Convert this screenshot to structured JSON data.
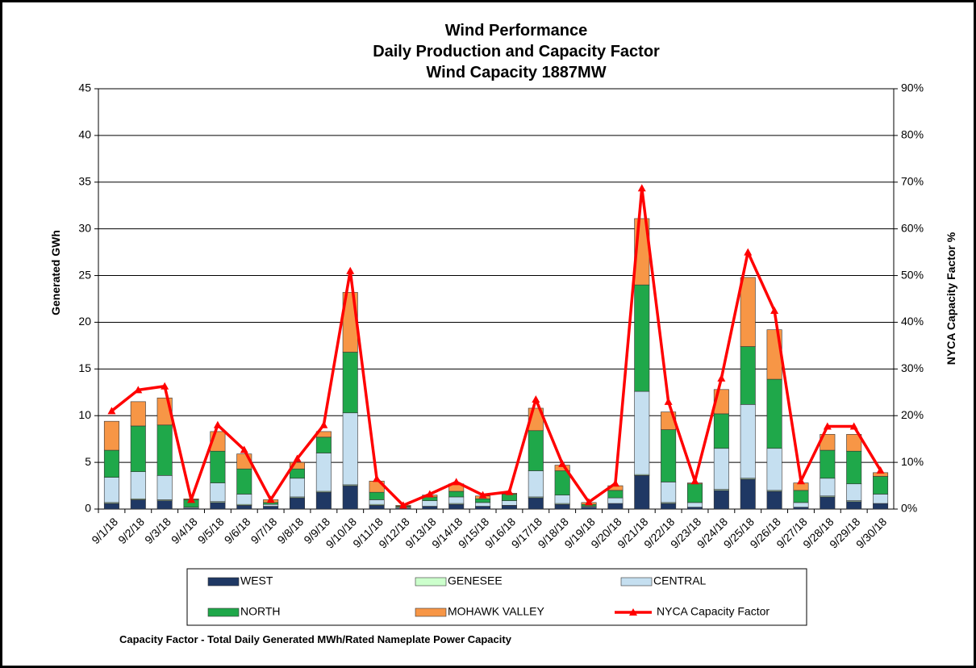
{
  "chart_data": {
    "type": "stacked-bar-line",
    "title": [
      "Wind Performance",
      "Daily Production and Capacity Factor",
      "Wind Capacity 1887MW"
    ],
    "ylabel": "Generated GWh",
    "y2label": "NYCA  Capacity  Factor %",
    "footnote": "Capacity Factor  - Total Daily Generated MWh/Rated Nameplate Power Capacity",
    "categories": [
      "9/1/18",
      "9/2/18",
      "9/3/18",
      "9/4/18",
      "9/5/18",
      "9/6/18",
      "9/7/18",
      "9/8/18",
      "9/9/18",
      "9/10/18",
      "9/11/18",
      "9/12/18",
      "9/13/18",
      "9/14/18",
      "9/15/18",
      "9/16/18",
      "9/17/18",
      "9/18/18",
      "9/19/18",
      "9/20/18",
      "9/21/18",
      "9/22/18",
      "9/23/18",
      "9/24/18",
      "9/25/18",
      "9/26/18",
      "9/27/18",
      "9/28/18",
      "9/29/18",
      "9/30/18"
    ],
    "ylim": [
      0,
      45
    ],
    "yticks": [
      0,
      5,
      10,
      15,
      20,
      25,
      30,
      35,
      40,
      45
    ],
    "y2lim": [
      0,
      90
    ],
    "y2ticks": [
      {
        "value": 0,
        "label": "0%"
      },
      {
        "value": 10,
        "label": "10%"
      },
      {
        "value": 20,
        "label": "20%"
      },
      {
        "value": 30,
        "label": "30%"
      },
      {
        "value": 40,
        "label": "40%"
      },
      {
        "value": 50,
        "label": "50%"
      },
      {
        "value": 60,
        "label": "60%"
      },
      {
        "value": 70,
        "label": "70%"
      },
      {
        "value": 80,
        "label": "80%"
      },
      {
        "value": 90,
        "label": "90%"
      }
    ],
    "grid": true,
    "legend": "bottom",
    "series": [
      {
        "name": "WEST",
        "color": "#1f3864",
        "values": [
          0.6,
          1.0,
          0.9,
          0.1,
          0.7,
          0.4,
          0.3,
          1.2,
          1.8,
          2.5,
          0.4,
          0.1,
          0.3,
          0.5,
          0.3,
          0.4,
          1.2,
          0.5,
          0.2,
          0.6,
          3.6,
          0.6,
          0.2,
          2.0,
          3.2,
          1.9,
          0.2,
          1.3,
          0.8,
          0.6
        ]
      },
      {
        "name": "GENESEE",
        "color": "#ccffcc",
        "values": [
          0.1,
          0.1,
          0.1,
          0,
          0.1,
          0.1,
          0,
          0.1,
          0.1,
          0.1,
          0.1,
          0,
          0,
          0.1,
          0,
          0,
          0.1,
          0.1,
          0,
          0,
          0.1,
          0.1,
          0,
          0.1,
          0.1,
          0.1,
          0,
          0.1,
          0.1,
          0
        ]
      },
      {
        "name": "CENTRAL",
        "color": "#c5dff0",
        "values": [
          2.7,
          2.9,
          2.6,
          0.1,
          2.0,
          1.1,
          0.2,
          2.0,
          4.1,
          7.7,
          0.5,
          0.1,
          0.6,
          0.7,
          0.4,
          0.5,
          2.8,
          0.9,
          0.1,
          0.6,
          8.9,
          2.2,
          0.5,
          4.4,
          7.9,
          4.5,
          0.5,
          1.9,
          1.8,
          1.0
        ]
      },
      {
        "name": "NORTH",
        "color": "#1fa84a",
        "values": [
          2.9,
          4.9,
          5.4,
          0.8,
          3.4,
          2.7,
          0.2,
          1.0,
          1.7,
          6.5,
          0.8,
          0.1,
          0.4,
          0.6,
          0.4,
          0.7,
          4.3,
          2.6,
          0.2,
          0.8,
          11.4,
          5.6,
          2.0,
          3.7,
          6.2,
          7.4,
          1.3,
          3.0,
          3.5,
          1.9
        ]
      },
      {
        "name": "MOHAWK VALLEY",
        "color": "#f79646",
        "values": [
          3.1,
          2.6,
          2.9,
          0.1,
          2.1,
          1.6,
          0.3,
          0.7,
          0.6,
          6.4,
          1.2,
          0.1,
          0.2,
          0.8,
          0.3,
          0.1,
          2.4,
          0.6,
          0.2,
          0.5,
          7.1,
          1.9,
          0.1,
          2.6,
          7.4,
          5.3,
          0.8,
          1.7,
          1.8,
          0.4
        ]
      },
      {
        "name": "NYCA Capacity Factor",
        "color": "#ff0000",
        "axis": "y2",
        "type": "line",
        "values": [
          21,
          25.5,
          26.3,
          2,
          18,
          12.7,
          2,
          10.8,
          18,
          51,
          6.5,
          0.8,
          3.2,
          5.8,
          3,
          3.7,
          23.5,
          9.7,
          1.5,
          5.5,
          68.7,
          23,
          6,
          28,
          55,
          42.5,
          6,
          17.7,
          17.7,
          8.3
        ]
      }
    ]
  }
}
